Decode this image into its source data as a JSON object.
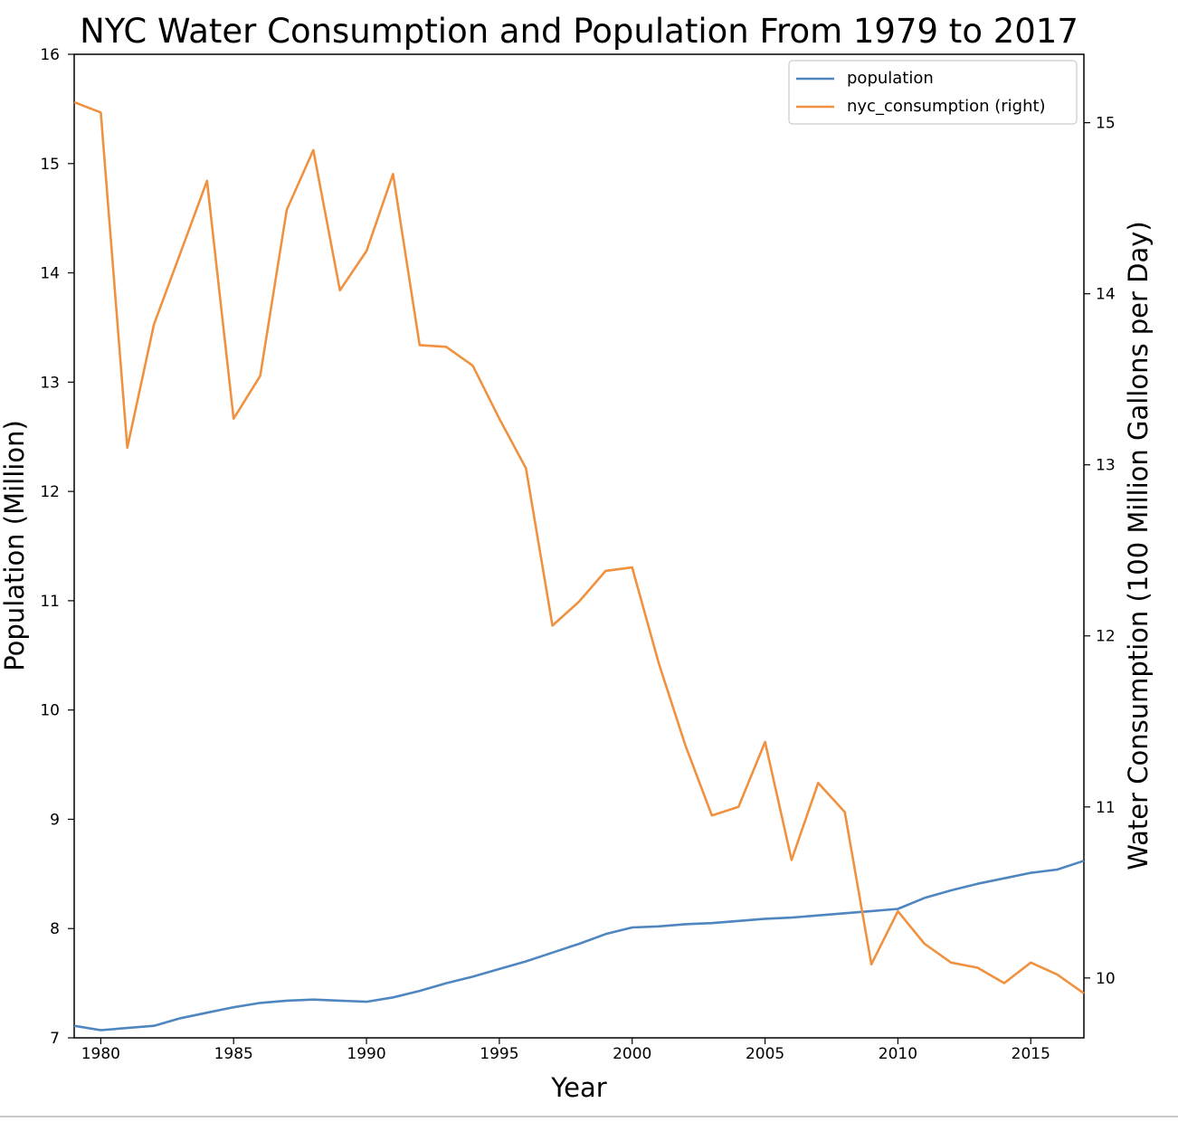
{
  "chart_data": {
    "type": "line",
    "title": "NYC Water Consumption and Population From 1979 to 2017",
    "xlabel": "Year",
    "ylabel_left": "Population (Million)",
    "ylabel_right": "Water Consumption (100 Million Gallons per Day)",
    "x": [
      1979,
      1980,
      1981,
      1982,
      1983,
      1984,
      1985,
      1986,
      1987,
      1988,
      1989,
      1990,
      1991,
      1992,
      1993,
      1994,
      1995,
      1996,
      1997,
      1998,
      1999,
      2000,
      2001,
      2002,
      2003,
      2004,
      2005,
      2006,
      2007,
      2008,
      2009,
      2010,
      2011,
      2012,
      2013,
      2014,
      2015,
      2016,
      2017
    ],
    "xlim": [
      1979,
      2017
    ],
    "xticks": [
      1980,
      1985,
      1990,
      1995,
      2000,
      2005,
      2010,
      2015
    ],
    "ylim_left": [
      7,
      16
    ],
    "yticks_left": [
      7,
      8,
      9,
      10,
      11,
      12,
      13,
      14,
      15,
      16
    ],
    "ylim_right": [
      9.65,
      15.4
    ],
    "yticks_right": [
      10,
      11,
      12,
      13,
      14,
      15
    ],
    "grid": false,
    "legend_position": "top-right",
    "series": [
      {
        "name": "population",
        "axis": "left",
        "color": "#4f86c0",
        "values": [
          7.11,
          7.07,
          7.09,
          7.11,
          7.18,
          7.23,
          7.28,
          7.32,
          7.34,
          7.35,
          7.34,
          7.33,
          7.37,
          7.43,
          7.5,
          7.56,
          7.63,
          7.7,
          7.78,
          7.86,
          7.95,
          8.01,
          8.02,
          8.04,
          8.05,
          8.07,
          8.09,
          8.1,
          8.12,
          8.14,
          8.16,
          8.18,
          8.28,
          8.35,
          8.41,
          8.46,
          8.51,
          8.54,
          8.62
        ]
      },
      {
        "name": "nyc_consumption (right)",
        "axis": "right",
        "color": "#f0913f",
        "values": [
          15.12,
          15.06,
          13.1,
          13.82,
          14.24,
          14.66,
          13.27,
          13.52,
          14.49,
          14.84,
          14.02,
          14.25,
          14.7,
          13.7,
          13.69,
          13.58,
          13.27,
          12.98,
          12.06,
          12.2,
          12.38,
          12.4,
          11.84,
          11.36,
          10.95,
          11.0,
          11.38,
          10.69,
          11.14,
          10.97,
          10.08,
          10.39,
          10.2,
          10.09,
          10.06,
          9.97,
          10.09,
          10.02,
          9.91
        ]
      }
    ]
  }
}
